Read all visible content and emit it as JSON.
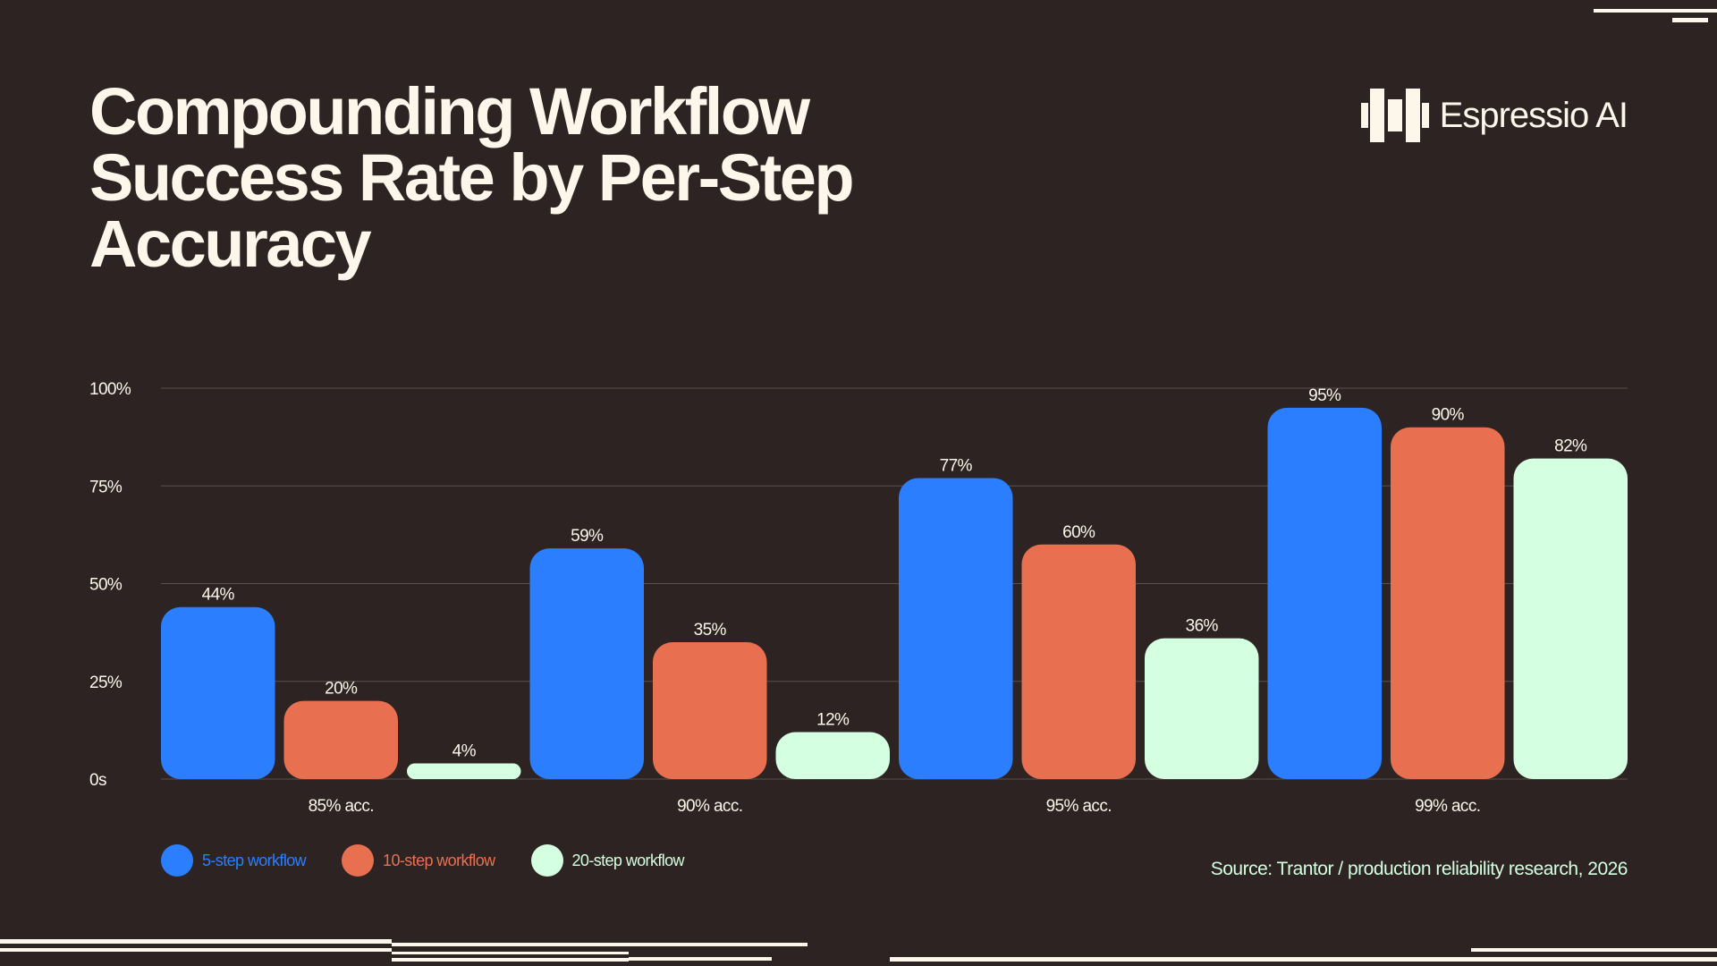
{
  "title": "Compounding Workflow Success Rate by Per-Step Accuracy",
  "brand": {
    "name": "Espressio AI",
    "logo_icon": "espressio-logo-icon"
  },
  "source": "Source: Trantor / production reliability research, 2026",
  "chart_data": {
    "type": "bar",
    "title": "Compounding Workflow Success Rate by Per-Step Accuracy",
    "categories": [
      "85% acc.",
      "90% acc.",
      "95% acc.",
      "99% acc."
    ],
    "series": [
      {
        "name": "5-step workflow",
        "color": "#2b7fff",
        "values": [
          44,
          59,
          77,
          95
        ],
        "labels": [
          "44%",
          "59%",
          "77%",
          "95%"
        ]
      },
      {
        "name": "10-step workflow",
        "color": "#e87050",
        "values": [
          20,
          35,
          60,
          90
        ],
        "labels": [
          "20%",
          "35%",
          "60%",
          "90%"
        ]
      },
      {
        "name": "20-step workflow",
        "color": "#d4ffe0",
        "values": [
          4,
          12,
          36,
          82
        ],
        "labels": [
          "4%",
          "12%",
          "36%",
          "82%"
        ]
      }
    ],
    "yticks": [
      {
        "value": 0,
        "label": "0s"
      },
      {
        "value": 25,
        "label": "25%"
      },
      {
        "value": 50,
        "label": "50%"
      },
      {
        "value": 75,
        "label": "75%"
      },
      {
        "value": 100,
        "label": "100%"
      }
    ],
    "ylim": [
      0,
      100
    ],
    "grid": true,
    "legend_position": "bottom-left"
  },
  "colors": {
    "background": "#2c2322",
    "text": "#fdf6ea",
    "gridline": "#5a504e"
  }
}
